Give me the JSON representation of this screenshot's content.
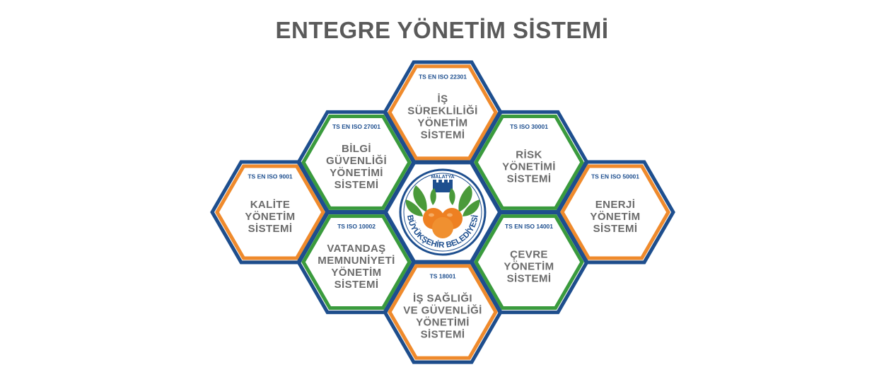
{
  "title": "ENTEGRE YÖNETİM SİSTEMİ",
  "colors": {
    "orange": "#ef8a2c",
    "green": "#3a9b3d",
    "navy": "#1e4f8f",
    "text_gray": "#6b6b6b",
    "logo_orange": "#ee8022",
    "logo_green": "#4a9a3a"
  },
  "center_logo": {
    "top_text": "MALATYA",
    "arc_text": "BÜYÜKŞEHİR BELEDİYESİ"
  },
  "cells": [
    {
      "id": "is-surekliligi",
      "color": "orange",
      "code": "TS EN ISO 22301",
      "lines": [
        "İŞ",
        "SÜREKLİLİĞİ",
        "YÖNETİM",
        "SİSTEMİ"
      ]
    },
    {
      "id": "bilgi-guvenligi",
      "color": "green",
      "code": "TS EN ISO 27001",
      "lines": [
        "BİLGİ",
        "GÜVENLİĞİ",
        "YÖNETİMİ",
        "SİSTEMİ"
      ]
    },
    {
      "id": "risk",
      "color": "green",
      "code": "TS ISO 30001",
      "lines": [
        "RİSK",
        "YÖNETİMİ",
        "SİSTEMİ"
      ]
    },
    {
      "id": "kalite",
      "color": "orange",
      "code": "TS EN ISO 9001",
      "lines": [
        "KALİTE",
        "YÖNETİM",
        "SİSTEMİ"
      ]
    },
    {
      "id": "enerji",
      "color": "orange",
      "code": "TS EN ISO 50001",
      "lines": [
        "ENERJİ",
        "YÖNETİM",
        "SİSTEMİ"
      ]
    },
    {
      "id": "vatandas",
      "color": "green",
      "code": "TS ISO 10002",
      "lines": [
        "VATANDAŞ",
        "MEMNUNİYETİ",
        "YÖNETİM",
        "SİSTEMİ"
      ]
    },
    {
      "id": "cevre",
      "color": "green",
      "code": "TS EN ISO 14001",
      "lines": [
        "ÇEVRE",
        "YÖNETİM",
        "SİSTEMİ"
      ]
    },
    {
      "id": "is-sagligi",
      "color": "orange",
      "code": "TS 18001",
      "lines": [
        "İŞ SAĞLIĞI",
        "VE GÜVENLİĞİ",
        "YÖNETİMİ",
        "SİSTEMİ"
      ]
    }
  ]
}
